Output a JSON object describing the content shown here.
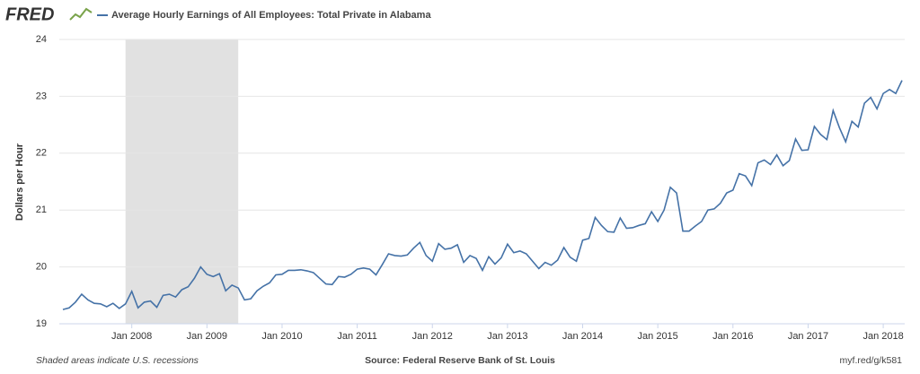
{
  "chart_data": {
    "type": "line",
    "brand": "FRED",
    "ylabel": "Dollars per Hour",
    "footer_left": "Shaded areas indicate U.S. recessions",
    "footer_center": "Source: Federal Reserve Bank of St. Louis",
    "footer_right": "myf.red/g/k581",
    "xlim": [
      "2007-02",
      "2018-04"
    ],
    "ylim": [
      19,
      24
    ],
    "yticks": [
      19,
      20,
      21,
      22,
      23,
      24
    ],
    "xticks": [
      {
        "value": "2008-01",
        "label": "Jan 2008"
      },
      {
        "value": "2009-01",
        "label": "Jan 2009"
      },
      {
        "value": "2010-01",
        "label": "Jan 2010"
      },
      {
        "value": "2011-01",
        "label": "Jan 2011"
      },
      {
        "value": "2012-01",
        "label": "Jan 2012"
      },
      {
        "value": "2013-01",
        "label": "Jan 2013"
      },
      {
        "value": "2014-01",
        "label": "Jan 2014"
      },
      {
        "value": "2015-01",
        "label": "Jan 2015"
      },
      {
        "value": "2016-01",
        "label": "Jan 2016"
      },
      {
        "value": "2017-01",
        "label": "Jan 2017"
      },
      {
        "value": "2018-01",
        "label": "Jan 2018"
      }
    ],
    "grid": true,
    "recessions": [
      {
        "start": "2007-12",
        "end": "2009-06",
        "color": "#e1e1e1"
      }
    ],
    "series": [
      {
        "name": "Average Hourly Earnings of All Employees: Total Private in Alabama",
        "color": "#4572a7",
        "x": [
          "2007-02",
          "2007-03",
          "2007-04",
          "2007-05",
          "2007-06",
          "2007-07",
          "2007-08",
          "2007-09",
          "2007-10",
          "2007-11",
          "2007-12",
          "2008-01",
          "2008-02",
          "2008-03",
          "2008-04",
          "2008-05",
          "2008-06",
          "2008-07",
          "2008-08",
          "2008-09",
          "2008-10",
          "2008-11",
          "2008-12",
          "2009-01",
          "2009-02",
          "2009-03",
          "2009-04",
          "2009-05",
          "2009-06",
          "2009-07",
          "2009-08",
          "2009-09",
          "2009-10",
          "2009-11",
          "2009-12",
          "2010-01",
          "2010-02",
          "2010-03",
          "2010-04",
          "2010-05",
          "2010-06",
          "2010-07",
          "2010-08",
          "2010-09",
          "2010-10",
          "2010-11",
          "2010-12",
          "2011-01",
          "2011-02",
          "2011-03",
          "2011-04",
          "2011-05",
          "2011-06",
          "2011-07",
          "2011-08",
          "2011-09",
          "2011-10",
          "2011-11",
          "2011-12",
          "2012-01",
          "2012-02",
          "2012-03",
          "2012-04",
          "2012-05",
          "2012-06",
          "2012-07",
          "2012-08",
          "2012-09",
          "2012-10",
          "2012-11",
          "2012-12",
          "2013-01",
          "2013-02",
          "2013-03",
          "2013-04",
          "2013-05",
          "2013-06",
          "2013-07",
          "2013-08",
          "2013-09",
          "2013-10",
          "2013-11",
          "2013-12",
          "2014-01",
          "2014-02",
          "2014-03",
          "2014-04",
          "2014-05",
          "2014-06",
          "2014-07",
          "2014-08",
          "2014-09",
          "2014-10",
          "2014-11",
          "2014-12",
          "2015-01",
          "2015-02",
          "2015-03",
          "2015-04",
          "2015-05",
          "2015-06",
          "2015-07",
          "2015-08",
          "2015-09",
          "2015-10",
          "2015-11",
          "2015-12",
          "2016-01",
          "2016-02",
          "2016-03",
          "2016-04",
          "2016-05",
          "2016-06",
          "2016-07",
          "2016-08",
          "2016-09",
          "2016-10",
          "2016-11",
          "2016-12",
          "2017-01",
          "2017-02",
          "2017-03",
          "2017-04",
          "2017-05",
          "2017-06",
          "2017-07",
          "2017-08",
          "2017-09",
          "2017-10",
          "2017-11",
          "2017-12",
          "2018-01",
          "2018-02",
          "2018-03",
          "2018-04"
        ],
        "values": [
          19.25,
          19.28,
          19.38,
          19.52,
          19.42,
          19.36,
          19.35,
          19.3,
          19.36,
          19.27,
          19.35,
          19.57,
          19.28,
          19.38,
          19.4,
          19.29,
          19.5,
          19.52,
          19.47,
          19.6,
          19.65,
          19.8,
          20.0,
          19.87,
          19.83,
          19.88,
          19.58,
          19.68,
          19.63,
          19.42,
          19.44,
          19.58,
          19.66,
          19.72,
          19.86,
          19.87,
          19.94,
          19.94,
          19.95,
          19.93,
          19.9,
          19.8,
          19.7,
          19.69,
          19.83,
          19.82,
          19.87,
          19.96,
          19.98,
          19.96,
          19.86,
          20.04,
          20.23,
          20.2,
          20.19,
          20.21,
          20.33,
          20.43,
          20.2,
          20.1,
          20.41,
          20.31,
          20.33,
          20.39,
          20.08,
          20.2,
          20.15,
          19.94,
          20.18,
          20.05,
          20.16,
          20.4,
          20.25,
          20.28,
          20.23,
          20.1,
          19.97,
          20.08,
          20.03,
          20.12,
          20.34,
          20.17,
          20.1,
          20.47,
          20.5,
          20.87,
          20.73,
          20.62,
          20.61,
          20.86,
          20.68,
          20.69,
          20.73,
          20.76,
          20.97,
          20.8,
          21.0,
          21.4,
          21.3,
          20.63,
          20.63,
          20.72,
          20.8,
          21.0,
          21.02,
          21.12,
          21.3,
          21.35,
          21.64,
          21.6,
          21.43,
          21.83,
          21.88,
          21.8,
          21.97,
          21.78,
          21.87,
          22.25,
          22.05,
          22.06,
          22.47,
          22.33,
          22.24,
          22.75,
          22.45,
          22.2,
          22.56,
          22.46,
          22.88,
          22.98,
          22.78,
          23.05,
          23.12,
          23.05,
          23.28
        ]
      }
    ]
  }
}
